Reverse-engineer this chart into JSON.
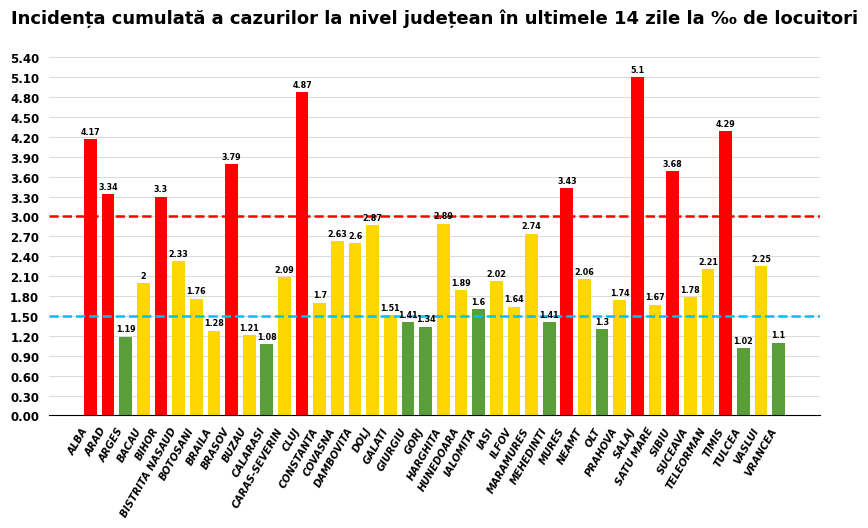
{
  "title": "Incidența cumulată a cazurilor la nivel județean în ultimele 14 zile la ‰ de locuitori",
  "categories": [
    "ALBA",
    "ARAD",
    "ARGES",
    "BACAU",
    "BIHOR",
    "BISTRITA NASAUD",
    "BOTOSANI",
    "BRAILA",
    "BRASOV",
    "BUZAU",
    "CALARASI",
    "CARAS-SEVERIN",
    "CLUJ",
    "CONSTANTA",
    "COVASNA",
    "DAMBOVITA",
    "DOLJ",
    "GALATI",
    "GIURGIU",
    "GORJ",
    "HARGHITA",
    "HUNEDOARA",
    "IALOMITA",
    "IASI",
    "ILFOV",
    "MARAMURES",
    "MEHEDINTI",
    "MURES",
    "NEAMT",
    "OLT",
    "PRAHOVA",
    "SALAJ",
    "SATU MARE",
    "SIBIU",
    "SUCEAVA",
    "TELEORMAN",
    "TIMIS",
    "TULCEA",
    "VASLUI",
    "VRANCEA"
  ],
  "values": [
    4.17,
    3.34,
    1.19,
    2.0,
    3.3,
    2.33,
    1.76,
    1.28,
    3.79,
    1.21,
    1.08,
    2.09,
    4.87,
    1.7,
    2.63,
    2.6,
    2.87,
    1.51,
    1.41,
    1.34,
    2.89,
    1.89,
    1.6,
    2.02,
    1.64,
    2.74,
    1.41,
    3.43,
    2.06,
    1.3,
    1.74,
    5.1,
    1.67,
    3.68,
    1.78,
    2.21,
    4.29,
    1.02,
    2.25,
    1.1
  ],
  "colors": [
    "red",
    "red",
    "green",
    "yellow",
    "red",
    "yellow",
    "yellow",
    "yellow",
    "red",
    "yellow",
    "green",
    "yellow",
    "red",
    "yellow",
    "yellow",
    "yellow",
    "yellow",
    "yellow",
    "green",
    "green",
    "yellow",
    "yellow",
    "green",
    "yellow",
    "yellow",
    "yellow",
    "green",
    "red",
    "yellow",
    "green",
    "yellow",
    "red",
    "yellow",
    "red",
    "yellow",
    "yellow",
    "red",
    "green",
    "yellow",
    "green"
  ],
  "red_line": 3.0,
  "blue_line": 1.5,
  "ylim_max": 5.7,
  "yticks": [
    0.0,
    0.3,
    0.6,
    0.9,
    1.2,
    1.5,
    1.8,
    2.1,
    2.4,
    2.7,
    3.0,
    3.3,
    3.6,
    3.9,
    4.2,
    4.5,
    4.8,
    5.1,
    5.4
  ],
  "bar_color_red": "#FF0000",
  "bar_color_yellow": "#FFD700",
  "bar_color_green": "#5A9E3A",
  "line_red": "#FF0000",
  "line_blue": "#00BFFF",
  "bg_color": "#FFFFFF",
  "title_fontsize": 13,
  "label_fontsize": 7.2,
  "value_fontsize": 5.8
}
